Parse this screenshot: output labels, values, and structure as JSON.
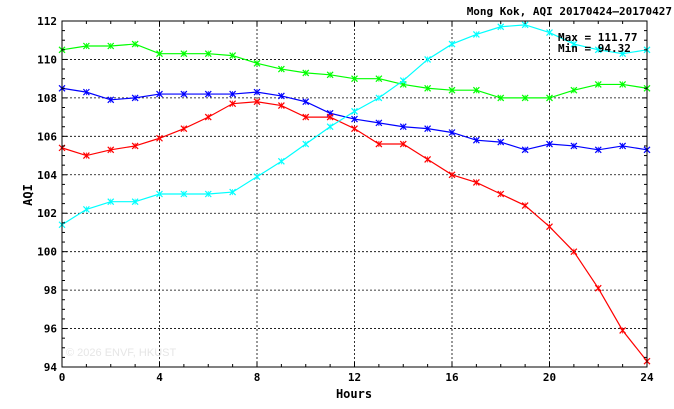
{
  "chart_data": {
    "type": "line",
    "title": "Mong Kok, AQI 20170424—20170427",
    "xlabel": "Hours",
    "ylabel": "AQI",
    "xlim": [
      0,
      24
    ],
    "ylim": [
      94,
      112
    ],
    "xticks": [
      0,
      4,
      8,
      12,
      16,
      20,
      24
    ],
    "yticks": [
      94,
      96,
      98,
      100,
      102,
      104,
      106,
      108,
      110,
      112
    ],
    "grid": true,
    "annotations": {
      "max_text": "Max = 111.77",
      "min_text": "Min =  94.32"
    },
    "watermark": "© 2026 ENVF, HKUST",
    "x": [
      0,
      1,
      2,
      3,
      4,
      5,
      6,
      7,
      8,
      9,
      10,
      11,
      12,
      13,
      14,
      15,
      16,
      17,
      18,
      19,
      20,
      21,
      22,
      23,
      24
    ],
    "series": [
      {
        "color": "#00ff00",
        "marker": "x",
        "values": [
          110.5,
          110.7,
          110.7,
          110.8,
          110.3,
          110.3,
          110.3,
          110.2,
          109.8,
          109.5,
          109.3,
          109.2,
          109.0,
          109.0,
          108.7,
          108.5,
          108.4,
          108.4,
          108.0,
          108.0,
          108.0,
          108.4,
          108.7,
          108.7,
          108.5
        ]
      },
      {
        "color": "#0000ff",
        "marker": "x",
        "values": [
          108.5,
          108.3,
          107.9,
          108.0,
          108.2,
          108.2,
          108.2,
          108.2,
          108.3,
          108.1,
          107.8,
          107.2,
          106.9,
          106.7,
          106.5,
          106.4,
          106.2,
          105.8,
          105.7,
          105.3,
          105.6,
          105.5,
          105.3,
          105.5,
          105.3
        ]
      },
      {
        "color": "#ff0000",
        "marker": "x",
        "values": [
          105.4,
          105.0,
          105.3,
          105.5,
          105.9,
          106.4,
          107.0,
          107.7,
          107.8,
          107.6,
          107.0,
          107.0,
          106.4,
          105.6,
          105.6,
          104.8,
          104.0,
          103.6,
          103.0,
          102.4,
          101.3,
          100.0,
          98.1,
          95.9,
          94.3
        ]
      },
      {
        "color": "#00ffff",
        "marker": "x",
        "values": [
          101.4,
          102.2,
          102.6,
          102.6,
          103.0,
          103.0,
          103.0,
          103.1,
          103.9,
          104.7,
          105.6,
          106.5,
          107.3,
          108.0,
          108.9,
          110.0,
          110.8,
          111.3,
          111.7,
          111.8,
          111.4,
          110.8,
          110.5,
          110.3,
          110.5
        ]
      }
    ]
  }
}
